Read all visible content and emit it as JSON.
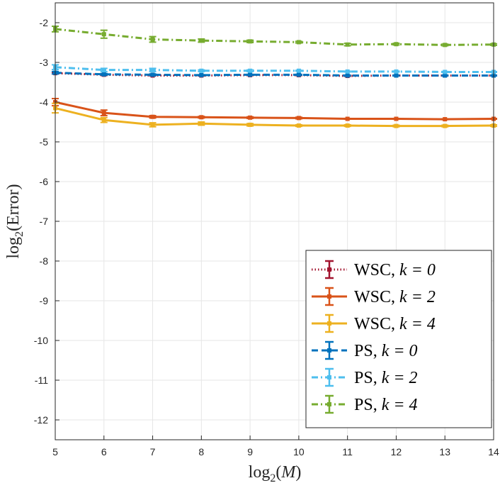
{
  "chart_data": {
    "type": "line",
    "title": "",
    "xlabel": "log2(M)",
    "ylabel": "log2(Error)",
    "xlim": [
      5,
      14
    ],
    "ylim": [
      -12.5,
      -1.5
    ],
    "x_ticks": [
      5,
      6,
      7,
      8,
      9,
      10,
      11,
      12,
      13,
      14
    ],
    "y_ticks": [
      -12,
      -11,
      -10,
      -9,
      -8,
      -7,
      -6,
      -5,
      -4,
      -3,
      -2
    ],
    "grid": true,
    "legend_position": "bottom-right",
    "x": [
      5,
      6,
      7,
      8,
      9,
      10,
      11,
      12,
      13,
      14
    ],
    "series": [
      {
        "name": "WSC, k = 0",
        "method": "WSC",
        "k": "k = 0",
        "color": "#A2142F",
        "style": "dotted",
        "values": [
          -3.27,
          -3.31,
          -3.33,
          -3.33,
          -3.32,
          -3.32,
          -3.34,
          -3.33,
          -3.33,
          -3.33
        ],
        "errors": [
          0.02,
          0.02,
          0.01,
          0.01,
          0.01,
          0.01,
          0.01,
          0.01,
          0.01,
          0.01
        ]
      },
      {
        "name": "WSC, k = 2",
        "method": "WSC",
        "k": "k = 2",
        "color": "#D95319",
        "style": "solid",
        "values": [
          -4.0,
          -4.27,
          -4.37,
          -4.38,
          -4.39,
          -4.4,
          -4.42,
          -4.42,
          -4.43,
          -4.42
        ],
        "errors": [
          0.09,
          0.07,
          0.03,
          0.02,
          0.02,
          0.02,
          0.01,
          0.01,
          0.01,
          0.01
        ]
      },
      {
        "name": "WSC, k = 4",
        "method": "WSC",
        "k": "k = 4",
        "color": "#EDB120",
        "style": "solid",
        "values": [
          -4.15,
          -4.45,
          -4.57,
          -4.54,
          -4.57,
          -4.59,
          -4.59,
          -4.6,
          -4.6,
          -4.59
        ],
        "errors": [
          0.12,
          0.06,
          0.05,
          0.04,
          0.03,
          0.02,
          0.02,
          0.02,
          0.02,
          0.02
        ]
      },
      {
        "name": "PS, k = 0",
        "method": "PS",
        "k": "k = 0",
        "color": "#0072BD",
        "style": "dashed",
        "values": [
          -3.26,
          -3.3,
          -3.31,
          -3.32,
          -3.31,
          -3.31,
          -3.33,
          -3.33,
          -3.33,
          -3.33
        ],
        "errors": [
          0.03,
          0.02,
          0.02,
          0.01,
          0.01,
          0.01,
          0.01,
          0.01,
          0.01,
          0.01
        ]
      },
      {
        "name": "PS, k = 2",
        "method": "PS",
        "k": "k = 2",
        "color": "#4DBEEE",
        "style": "dashdot",
        "values": [
          -3.12,
          -3.19,
          -3.19,
          -3.21,
          -3.21,
          -3.21,
          -3.23,
          -3.23,
          -3.24,
          -3.24
        ],
        "errors": [
          0.06,
          0.04,
          0.04,
          0.02,
          0.02,
          0.01,
          0.01,
          0.01,
          0.01,
          0.01
        ]
      },
      {
        "name": "PS, k = 4",
        "method": "PS",
        "k": "k = 4",
        "color": "#77AC30",
        "style": "dashdot",
        "values": [
          -2.16,
          -2.29,
          -2.42,
          -2.45,
          -2.47,
          -2.49,
          -2.55,
          -2.54,
          -2.56,
          -2.55
        ],
        "errors": [
          0.07,
          0.1,
          0.07,
          0.04,
          0.03,
          0.02,
          0.03,
          0.02,
          0.02,
          0.02
        ]
      }
    ]
  }
}
